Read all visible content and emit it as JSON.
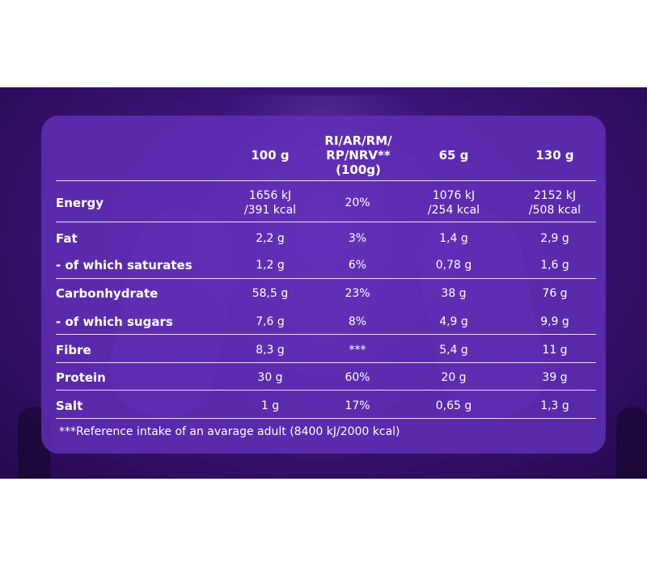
{
  "table": {
    "headers": {
      "col1": "100 g",
      "col2_lines": [
        "RI/AR/RM/",
        "RP/NRV**",
        "(100g)"
      ],
      "col3": "65 g",
      "col4": "130 g"
    },
    "rows": [
      {
        "label": "Energy",
        "v1": [
          "1656 kJ",
          "/391 kcal"
        ],
        "v2": "20%",
        "v3": [
          "1076 kJ",
          "/254 kcal"
        ],
        "v4": [
          "2152 kJ",
          "/508 kcal"
        ]
      },
      {
        "label": "Fat",
        "v1": "2,2 g",
        "v2": "3%",
        "v3": "1,4 g",
        "v4": "2,9 g"
      },
      {
        "label": "- of which saturates",
        "v1": "1,2 g",
        "v2": "6%",
        "v3": "0,78 g",
        "v4": "1,6 g"
      },
      {
        "label": "Carbonhydrate",
        "v1": "58,5 g",
        "v2": "23%",
        "v3": "38 g",
        "v4": "76 g"
      },
      {
        "label": "- of which sugars",
        "v1": "7,6 g",
        "v2": "8%",
        "v3": "4,9 g",
        "v4": "9,9 g"
      },
      {
        "label": "Fibre",
        "v1": "8,3 g",
        "v2": "***",
        "v3": "5,4 g",
        "v4": "11 g"
      },
      {
        "label": "Protein",
        "v1": "30 g",
        "v2": "60%",
        "v3": "20 g",
        "v4": "39 g"
      },
      {
        "label": "Salt",
        "v1": "1 g",
        "v2": "17%",
        "v3": "0,65 g",
        "v4": "1,3 g"
      }
    ],
    "footnote": "***Reference intake of an avarage adult (8400 kJ/2000 kcal)"
  },
  "colors": {
    "background": "#3d1478",
    "panel": "#6230b9",
    "text": "#ffffff"
  }
}
